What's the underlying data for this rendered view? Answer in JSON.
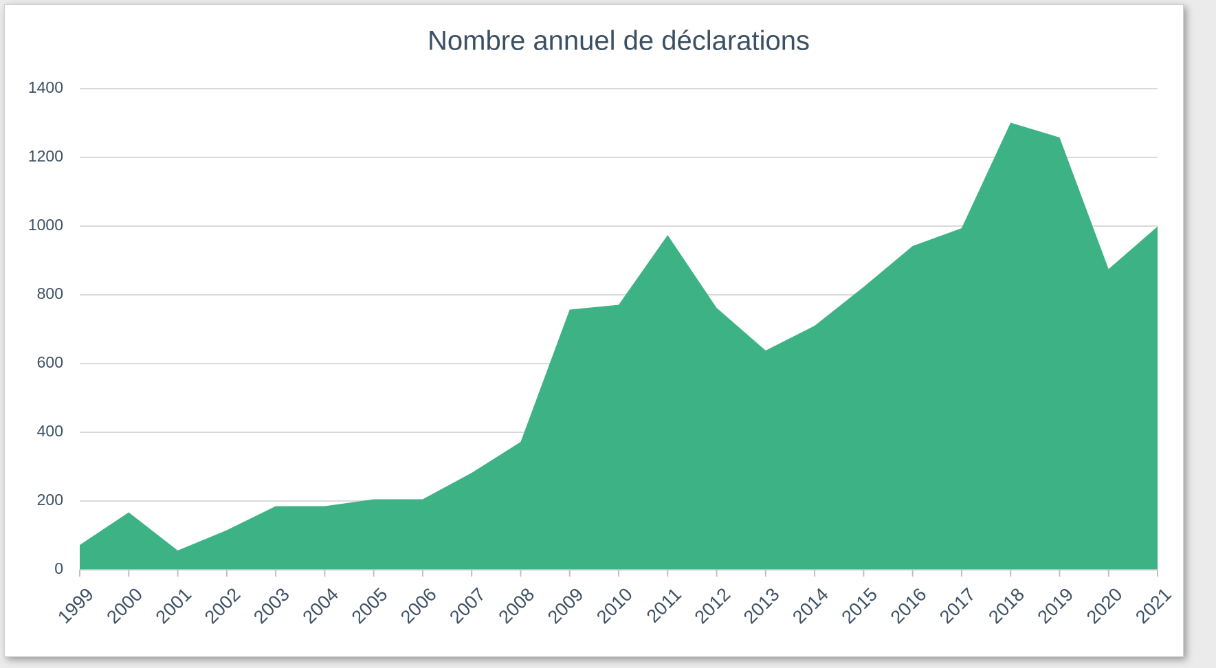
{
  "chart_data": {
    "type": "area",
    "title": "Nombre annuel de déclarations",
    "categories": [
      "1999",
      "2000",
      "2001",
      "2002",
      "2003",
      "2004",
      "2005",
      "2006",
      "2007",
      "2008",
      "2009",
      "2010",
      "2011",
      "2012",
      "2013",
      "2014",
      "2015",
      "2016",
      "2017",
      "2018",
      "2019",
      "2020",
      "2021"
    ],
    "values": [
      72,
      167,
      56,
      115,
      185,
      185,
      205,
      205,
      282,
      372,
      757,
      771,
      974,
      762,
      638,
      710,
      823,
      942,
      994,
      1301,
      1258,
      875,
      999
    ],
    "color": "#3db284",
    "ylim": [
      0,
      1400
    ],
    "yticks": [
      0,
      200,
      400,
      600,
      800,
      1000,
      1200,
      1400
    ],
    "grid": true
  }
}
